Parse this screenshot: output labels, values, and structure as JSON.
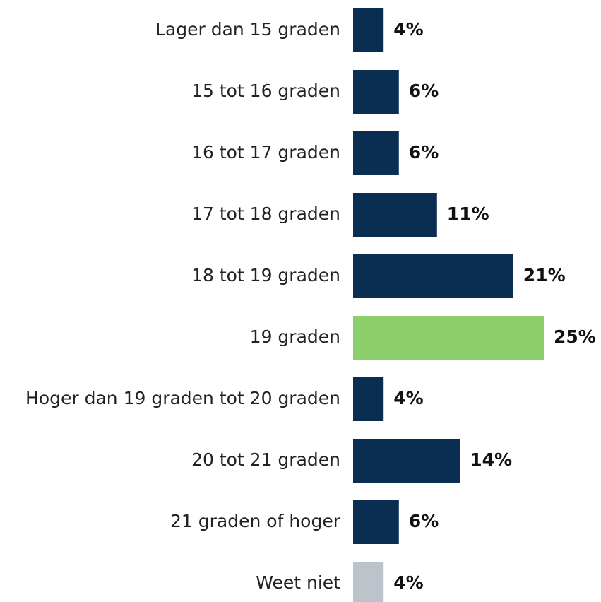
{
  "chart_data": {
    "type": "barh",
    "categories": [
      "Lager dan 15 graden",
      "15 tot 16 graden",
      "16 tot 17 graden",
      "17 tot 18 graden",
      "18 tot 19 graden",
      "19 graden",
      "Hoger dan 19 graden tot 20 graden",
      "20 tot 21 graden",
      "21 graden of hoger",
      "Weet niet"
    ],
    "values": [
      4,
      6,
      6,
      11,
      21,
      25,
      4,
      14,
      6,
      4
    ],
    "value_labels": [
      "4%",
      "6%",
      "6%",
      "11%",
      "21%",
      "25%",
      "4%",
      "14%",
      "6%",
      "4%"
    ],
    "colors": [
      "#0a2d52",
      "#0a2d52",
      "#0a2d52",
      "#0a2d52",
      "#0a2d52",
      "#8ccf6a",
      "#0a2d52",
      "#0a2d52",
      "#0a2d52",
      "#bcc3cb"
    ]
  }
}
